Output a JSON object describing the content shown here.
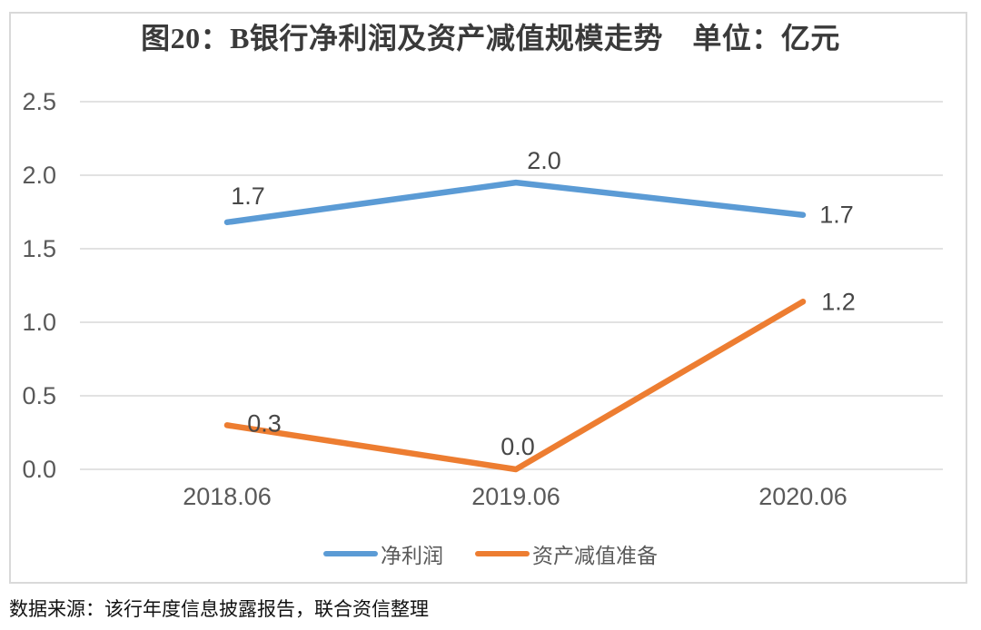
{
  "chart_data": {
    "type": "line",
    "title": "图20：B银行净利润及资产减值规模走势　单位：亿元",
    "categories": [
      "2018.06",
      "2019.06",
      "2020.06"
    ],
    "series": [
      {
        "name": "净利润",
        "color": "#5B9BD5",
        "values": [
          1.7,
          2.0,
          1.7
        ],
        "labels": [
          "1.7",
          "2.0",
          "1.7"
        ],
        "values_plotted": [
          1.68,
          1.95,
          1.73
        ]
      },
      {
        "name": "资产减值准备",
        "color": "#ED7D31",
        "values": [
          0.3,
          0.0,
          1.2
        ],
        "labels": [
          "0.3",
          "0.0",
          "1.2"
        ],
        "values_plotted": [
          0.3,
          0.0,
          1.14
        ]
      }
    ],
    "y_ticks": [
      "2.5",
      "2.0",
      "1.5",
      "1.0",
      "0.5",
      "0.0"
    ],
    "y_tick_values": [
      2.5,
      2.0,
      1.5,
      1.0,
      0.5,
      0.0
    ],
    "ylim": [
      0,
      2.5
    ],
    "grid": true,
    "legend_position": "bottom"
  },
  "source_note": "数据来源：该行年度信息披露报告，联合资信整理",
  "colors": {
    "grid": "#D9D9D9",
    "frame_border": "#D9D9D9",
    "tick_text": "#595959",
    "data_label_text": "#474747",
    "series_blue": "#5B9BD5",
    "series_orange": "#ED7D31"
  }
}
